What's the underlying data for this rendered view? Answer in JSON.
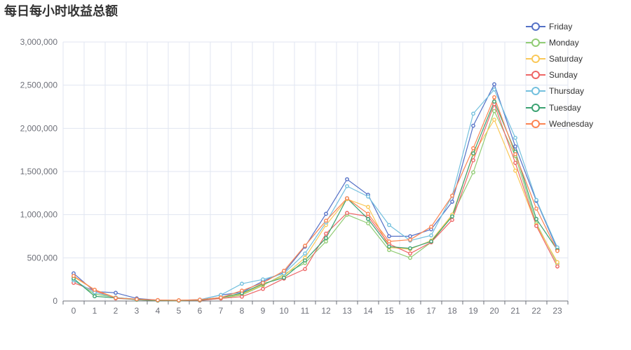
{
  "title": "每日每小时收益总额",
  "chart_data": {
    "type": "line",
    "title": "每日每小时收益总额",
    "xlabel": "",
    "ylabel": "",
    "categories": [
      "0",
      "1",
      "2",
      "3",
      "4",
      "5",
      "6",
      "7",
      "8",
      "9",
      "10",
      "11",
      "12",
      "13",
      "14",
      "15",
      "16",
      "17",
      "18",
      "19",
      "20",
      "21",
      "22",
      "23"
    ],
    "ylim": [
      0,
      3000000
    ],
    "y_ticks": [
      0,
      500000,
      1000000,
      1500000,
      2000000,
      2500000,
      3000000
    ],
    "y_tick_labels": [
      "0",
      "500,000",
      "1,000,000",
      "1,500,000",
      "2,000,000",
      "2,500,000",
      "3,000,000"
    ],
    "grid": true,
    "legend_position": "top-right",
    "series": [
      {
        "name": "Friday",
        "color": "#5470c6",
        "values": [
          320000,
          110000,
          95000,
          30000,
          10000,
          8000,
          15000,
          70000,
          100000,
          230000,
          330000,
          630000,
          1010000,
          1410000,
          1230000,
          750000,
          750000,
          830000,
          1150000,
          2030000,
          2510000,
          1790000,
          1160000,
          600000
        ]
      },
      {
        "name": "Monday",
        "color": "#91cc75",
        "values": [
          240000,
          80000,
          40000,
          15000,
          5000,
          3000,
          8000,
          30000,
          70000,
          180000,
          310000,
          440000,
          690000,
          1000000,
          900000,
          590000,
          500000,
          680000,
          990000,
          1490000,
          2200000,
          1680000,
          900000,
          430000
        ]
      },
      {
        "name": "Saturday",
        "color": "#fac858",
        "values": [
          280000,
          130000,
          40000,
          20000,
          10000,
          8000,
          10000,
          40000,
          80000,
          190000,
          290000,
          500000,
          880000,
          1180000,
          1090000,
          620000,
          600000,
          700000,
          1000000,
          1700000,
          2100000,
          1510000,
          880000,
          450000
        ]
      },
      {
        "name": "Sunday",
        "color": "#ee6666",
        "values": [
          210000,
          120000,
          30000,
          20000,
          10000,
          5000,
          5000,
          30000,
          50000,
          140000,
          260000,
          370000,
          780000,
          1020000,
          980000,
          660000,
          550000,
          680000,
          940000,
          1630000,
          2280000,
          1600000,
          870000,
          400000
        ]
      },
      {
        "name": "Thursday",
        "color": "#73c0de",
        "values": [
          240000,
          100000,
          40000,
          20000,
          8000,
          5000,
          15000,
          70000,
          200000,
          250000,
          320000,
          550000,
          910000,
          1330000,
          1210000,
          880000,
          700000,
          760000,
          1220000,
          2170000,
          2450000,
          1890000,
          1170000,
          620000
        ]
      },
      {
        "name": "Tuesday",
        "color": "#3ba272",
        "values": [
          260000,
          55000,
          35000,
          15000,
          5000,
          5000,
          10000,
          40000,
          90000,
          200000,
          270000,
          470000,
          730000,
          1190000,
          950000,
          630000,
          610000,
          690000,
          980000,
          1710000,
          2310000,
          1730000,
          950000,
          590000
        ]
      },
      {
        "name": "Wednesday",
        "color": "#fc8452",
        "values": [
          290000,
          130000,
          35000,
          20000,
          10000,
          8000,
          15000,
          40000,
          120000,
          210000,
          350000,
          640000,
          930000,
          1190000,
          1010000,
          690000,
          710000,
          860000,
          1220000,
          1770000,
          2360000,
          1700000,
          1070000,
          580000
        ]
      }
    ]
  }
}
